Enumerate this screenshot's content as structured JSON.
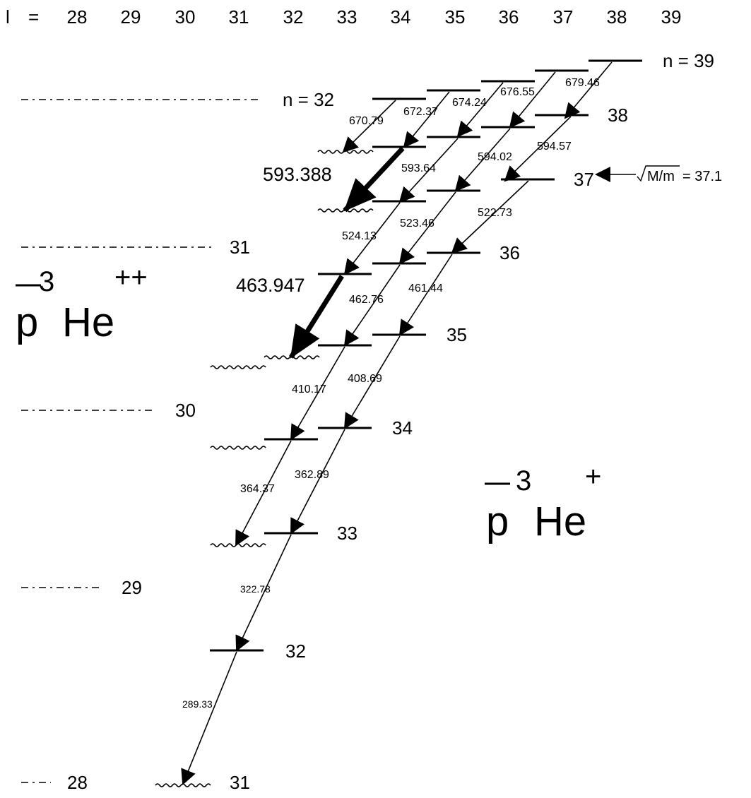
{
  "l_axis": {
    "label": "l",
    "eq": "=",
    "values": [
      "28",
      "29",
      "30",
      "31",
      "32",
      "33",
      "34",
      "35",
      "36",
      "37",
      "38",
      "39"
    ]
  },
  "n_labels": {
    "n39": "n = 39",
    "n38": "38",
    "n37": "37",
    "n36": "36",
    "n35": "35",
    "n34": "34",
    "n33": "33",
    "n32": "32",
    "n31": "31"
  },
  "ion_levels": {
    "n32": "n = 32",
    "n31": "31",
    "n30": "30",
    "n29": "29",
    "n28": "28"
  },
  "mass_ratio": {
    "arrow": "◀——",
    "sqrt": "√",
    "label": "M/m",
    "value": "= 37.1"
  },
  "species": {
    "ion": {
      "particle": "p",
      "mass": "3",
      "element": "He",
      "charge": "++"
    },
    "atom": {
      "particle": "p",
      "mass": "3",
      "element": "He",
      "charge": "+"
    }
  },
  "transitions": {
    "t679_46": "679.46",
    "t676_55": "676.55",
    "t674_24": "674.24",
    "t672_37": "672.37",
    "t670_79": "670.79",
    "t594_57": "594.57",
    "t594_02": "594.02",
    "t593_64": "593.64",
    "t593_388": "593.388",
    "t522_73": "522.73",
    "t523_46": "523.46",
    "t524_13": "524.13",
    "t461_44": "461.44",
    "t462_76": "462.76",
    "t463_947": "463.947",
    "t408_69": "408.69",
    "t410_17": "410.17",
    "t362_89": "362.89",
    "t364_37": "364.37",
    "t322_78": "322.78",
    "t289_33": "289.33"
  }
}
